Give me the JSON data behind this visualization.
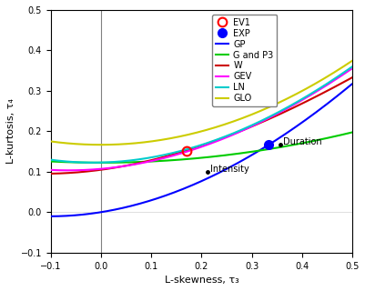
{
  "xlim": [
    -0.1,
    0.5
  ],
  "ylim": [
    -0.1,
    0.5
  ],
  "xlabel": "L-skewness, τ₃",
  "ylabel": "L-kurtosis, τ₄",
  "vline_x": 0.0,
  "hline_y": 0.0,
  "EV1_point": [
    0.1699,
    0.1504
  ],
  "EXP_point": [
    0.3333,
    0.1667
  ],
  "Intensity_point": [
    0.212,
    0.099
  ],
  "Duration_point": [
    0.356,
    0.168
  ],
  "Frequency_point": null,
  "legend_entries": [
    "EV1",
    "EXP",
    "GP",
    "G and P3",
    "W",
    "GEV",
    "LN",
    "GLO"
  ],
  "colors": {
    "GP": "#0000ff",
    "G_and_P3": "#00cc00",
    "W": "#cc0000",
    "GEV": "#ff00ff",
    "LN": "#00cccc",
    "GLO": "#cccc00",
    "EV1": "#cc0000",
    "EXP": "#0000cc"
  },
  "background_color": "#f5f5f5"
}
